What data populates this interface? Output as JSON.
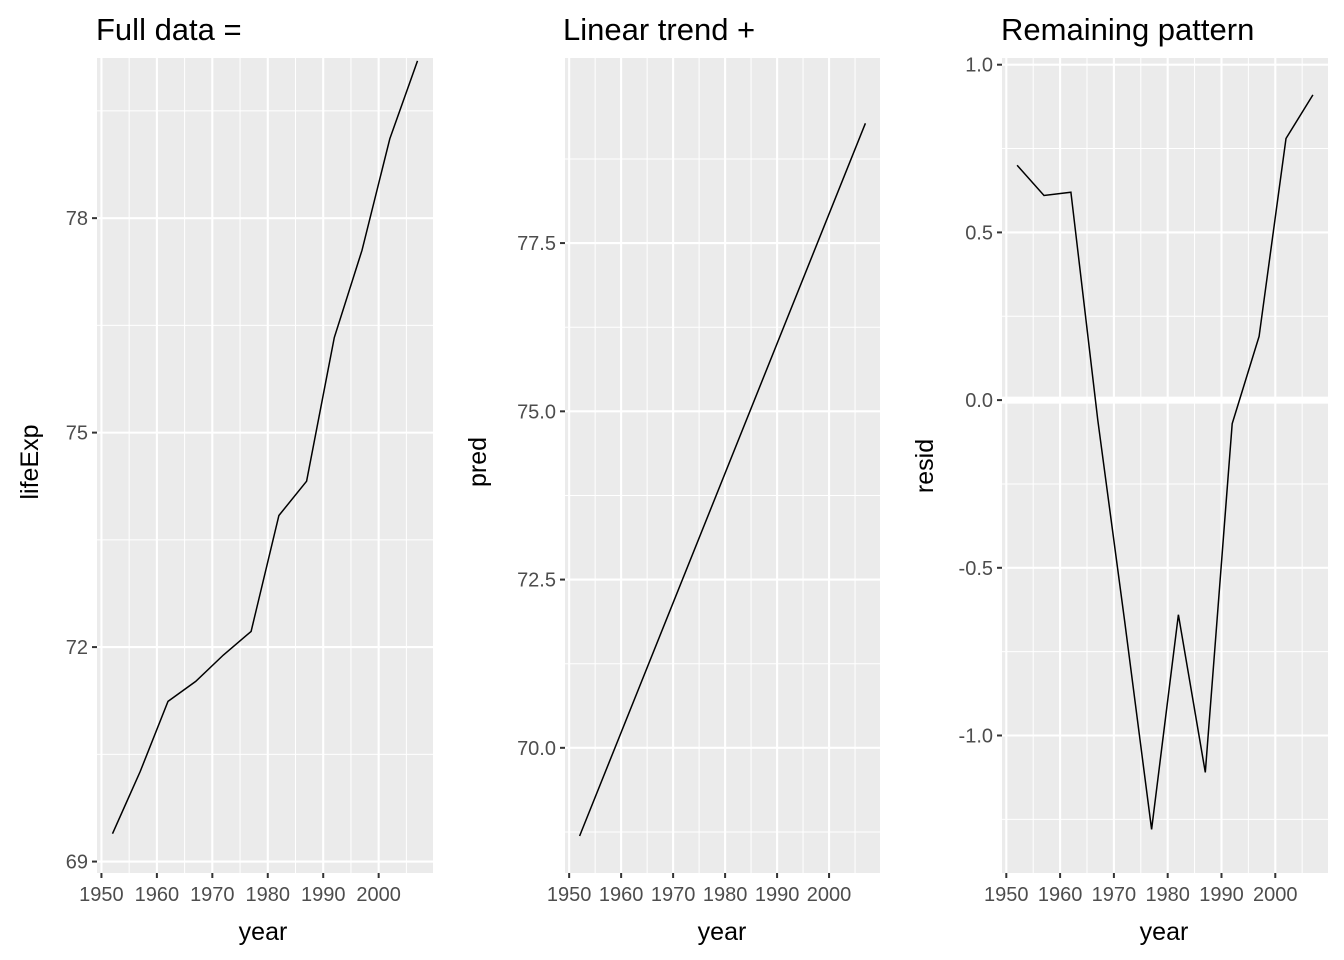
{
  "chart_data": [
    {
      "type": "line",
      "title": "Full data =",
      "xlabel": "year",
      "ylabel": "lifeExp",
      "xlim": [
        1949.2,
        2009.8
      ],
      "ylim": [
        68.84,
        80.24
      ],
      "xticks": [
        1950,
        1960,
        1970,
        1980,
        1990,
        2000
      ],
      "xtick_labels": [
        "1950",
        "1960",
        "1970",
        "1980",
        "1990",
        "2000"
      ],
      "yticks": [
        69,
        72,
        75,
        78
      ],
      "ytick_labels": [
        "69",
        "72",
        "75",
        "78"
      ],
      "grid": true,
      "x": [
        1952,
        1957,
        1962,
        1967,
        1972,
        1977,
        1982,
        1987,
        1992,
        1997,
        2002,
        2007
      ],
      "y": [
        69.39,
        70.26,
        71.24,
        71.52,
        71.89,
        72.22,
        73.84,
        74.32,
        76.33,
        77.55,
        79.11,
        80.2
      ]
    },
    {
      "type": "line",
      "title": "Linear trend +",
      "xlabel": "year",
      "ylabel": "pred",
      "xlim": [
        1949.2,
        2009.8
      ],
      "ylim": [
        68.14,
        80.25
      ],
      "xticks": [
        1950,
        1960,
        1970,
        1980,
        1990,
        2000
      ],
      "xtick_labels": [
        "1950",
        "1960",
        "1970",
        "1980",
        "1990",
        "2000"
      ],
      "yticks": [
        70.0,
        72.5,
        75.0,
        77.5
      ],
      "ytick_labels": [
        "70.0",
        "72.5",
        "75.0",
        "77.5"
      ],
      "grid": true,
      "x": [
        1952,
        2007
      ],
      "y": [
        68.69,
        79.28
      ]
    },
    {
      "type": "line",
      "title": "Remaining pattern",
      "xlabel": "year",
      "ylabel": "resid",
      "xlim": [
        1949.2,
        2009.8
      ],
      "ylim": [
        -1.41,
        1.02
      ],
      "xticks": [
        1950,
        1960,
        1970,
        1980,
        1990,
        2000
      ],
      "xtick_labels": [
        "1950",
        "1960",
        "1970",
        "1980",
        "1990",
        "2000"
      ],
      "yticks": [
        -1.0,
        -0.5,
        0.0,
        0.5,
        1.0
      ],
      "ytick_labels": [
        "-1.0",
        "-0.5",
        "0.0",
        "0.5",
        "1.0"
      ],
      "grid": true,
      "reference_line": 0.0,
      "x": [
        1952,
        1957,
        1962,
        1967,
        1972,
        1977,
        1982,
        1987,
        1992,
        1997,
        2002,
        2007
      ],
      "y": [
        0.7,
        0.61,
        0.62,
        -0.06,
        -0.66,
        -1.28,
        -0.64,
        -1.11,
        -0.07,
        0.19,
        0.78,
        0.91
      ]
    }
  ]
}
